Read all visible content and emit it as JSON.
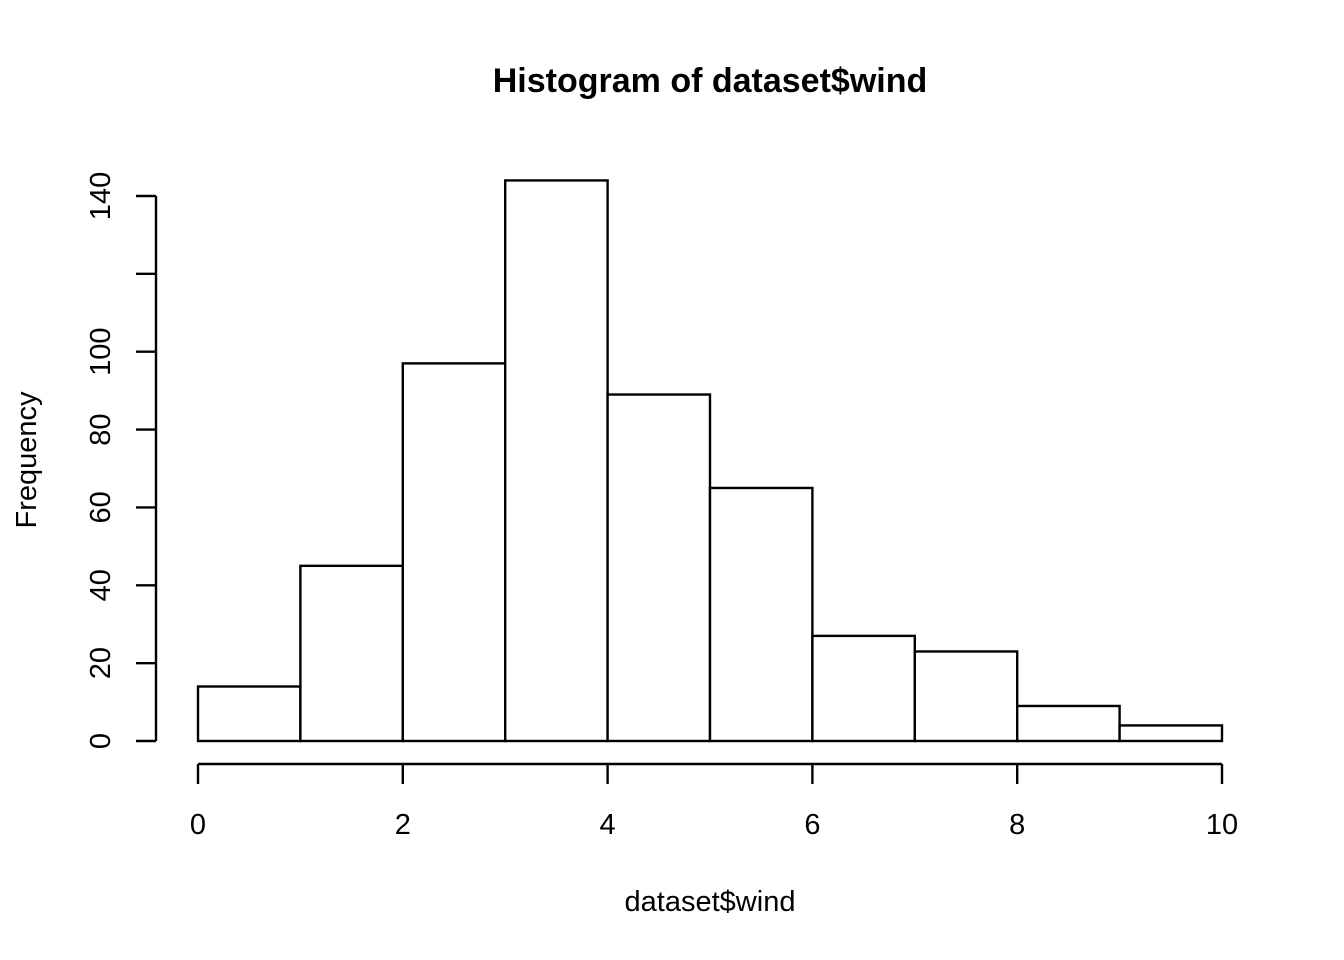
{
  "chart_data": {
    "type": "bar",
    "subtype": "histogram",
    "title": "Histogram of dataset$wind",
    "xlabel": "dataset$wind",
    "ylabel": "Frequency",
    "bins": [
      {
        "start": 0,
        "end": 1,
        "count": 14
      },
      {
        "start": 1,
        "end": 2,
        "count": 45
      },
      {
        "start": 2,
        "end": 3,
        "count": 97
      },
      {
        "start": 3,
        "end": 4,
        "count": 144
      },
      {
        "start": 4,
        "end": 5,
        "count": 89
      },
      {
        "start": 5,
        "end": 6,
        "count": 65
      },
      {
        "start": 6,
        "end": 7,
        "count": 27
      },
      {
        "start": 7,
        "end": 8,
        "count": 23
      },
      {
        "start": 8,
        "end": 9,
        "count": 9
      },
      {
        "start": 9,
        "end": 10,
        "count": 4
      }
    ],
    "xlim": [
      0,
      10
    ],
    "ylim": [
      0,
      140
    ],
    "x_ticks": [
      0,
      2,
      4,
      6,
      8,
      10
    ],
    "x_tick_labels": [
      "0",
      "2",
      "4",
      "6",
      "8",
      "10"
    ],
    "y_ticks": [
      0,
      20,
      40,
      60,
      80,
      100,
      120,
      140
    ],
    "y_tick_labels": [
      "0",
      "20",
      "40",
      "60",
      "80",
      "100",
      "",
      "140"
    ],
    "grid": false,
    "legend": "none",
    "bar_fill": "#ffffff",
    "bar_stroke": "#000000"
  }
}
